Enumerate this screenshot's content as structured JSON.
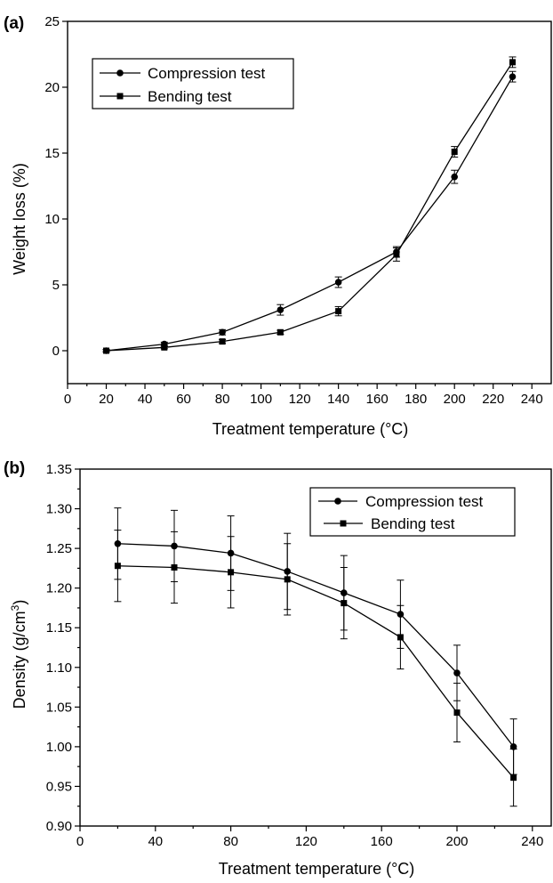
{
  "chart_data": [
    {
      "type": "line",
      "panel_label": "(a)",
      "xlabel": "Treatment temperature (°C)",
      "ylabel": "Weight loss (%)",
      "xlim": [
        0,
        250
      ],
      "ylim": [
        -2.5,
        25
      ],
      "xticks": [
        0,
        20,
        40,
        60,
        80,
        100,
        120,
        140,
        160,
        180,
        200,
        220,
        240
      ],
      "yticks": [
        0,
        5,
        10,
        15,
        20,
        25
      ],
      "legend_position": "top-left",
      "grid": false,
      "series": [
        {
          "name": "Compression test",
          "marker": "circle",
          "x": [
            20,
            50,
            80,
            110,
            140,
            170,
            200,
            230
          ],
          "y": [
            0,
            0.5,
            1.4,
            3.1,
            5.2,
            7.5,
            13.2,
            20.8
          ],
          "err": [
            0.1,
            0.15,
            0.2,
            0.4,
            0.4,
            0.4,
            0.5,
            0.4
          ]
        },
        {
          "name": "Bending test",
          "marker": "square",
          "x": [
            20,
            50,
            80,
            110,
            140,
            170,
            200,
            230
          ],
          "y": [
            0,
            0.25,
            0.7,
            1.4,
            3.0,
            7.3,
            15.1,
            21.9
          ],
          "err": [
            0.1,
            0.1,
            0.15,
            0.15,
            0.35,
            0.5,
            0.4,
            0.4
          ]
        }
      ]
    },
    {
      "type": "line",
      "panel_label": "(b)",
      "xlabel": "Treatment temperature (°C)",
      "ylabel_main": "Density (g/cm",
      "ylabel_sup": "3",
      "ylabel_end": ")",
      "xlim": [
        0,
        250
      ],
      "ylim": [
        0.9,
        1.35
      ],
      "xticks": [
        0,
        40,
        80,
        120,
        160,
        200,
        240
      ],
      "yticks": [
        0.9,
        0.95,
        1.0,
        1.05,
        1.1,
        1.15,
        1.2,
        1.25,
        1.3,
        1.35
      ],
      "legend_position": "top-right",
      "grid": false,
      "series": [
        {
          "name": "Compression test",
          "marker": "circle",
          "x": [
            20,
            50,
            80,
            110,
            140,
            170,
            200,
            230
          ],
          "y": [
            1.256,
            1.253,
            1.244,
            1.221,
            1.194,
            1.167,
            1.093,
            1.0
          ],
          "err": [
            0.045,
            0.045,
            0.047,
            0.048,
            0.047,
            0.043,
            0.035,
            0.035
          ]
        },
        {
          "name": "Bending test",
          "marker": "square",
          "x": [
            20,
            50,
            80,
            110,
            140,
            170,
            200,
            230
          ],
          "y": [
            1.228,
            1.226,
            1.22,
            1.211,
            1.181,
            1.138,
            1.043,
            0.961
          ],
          "err": [
            0.045,
            0.045,
            0.045,
            0.045,
            0.045,
            0.04,
            0.037,
            0.036
          ]
        }
      ]
    }
  ]
}
